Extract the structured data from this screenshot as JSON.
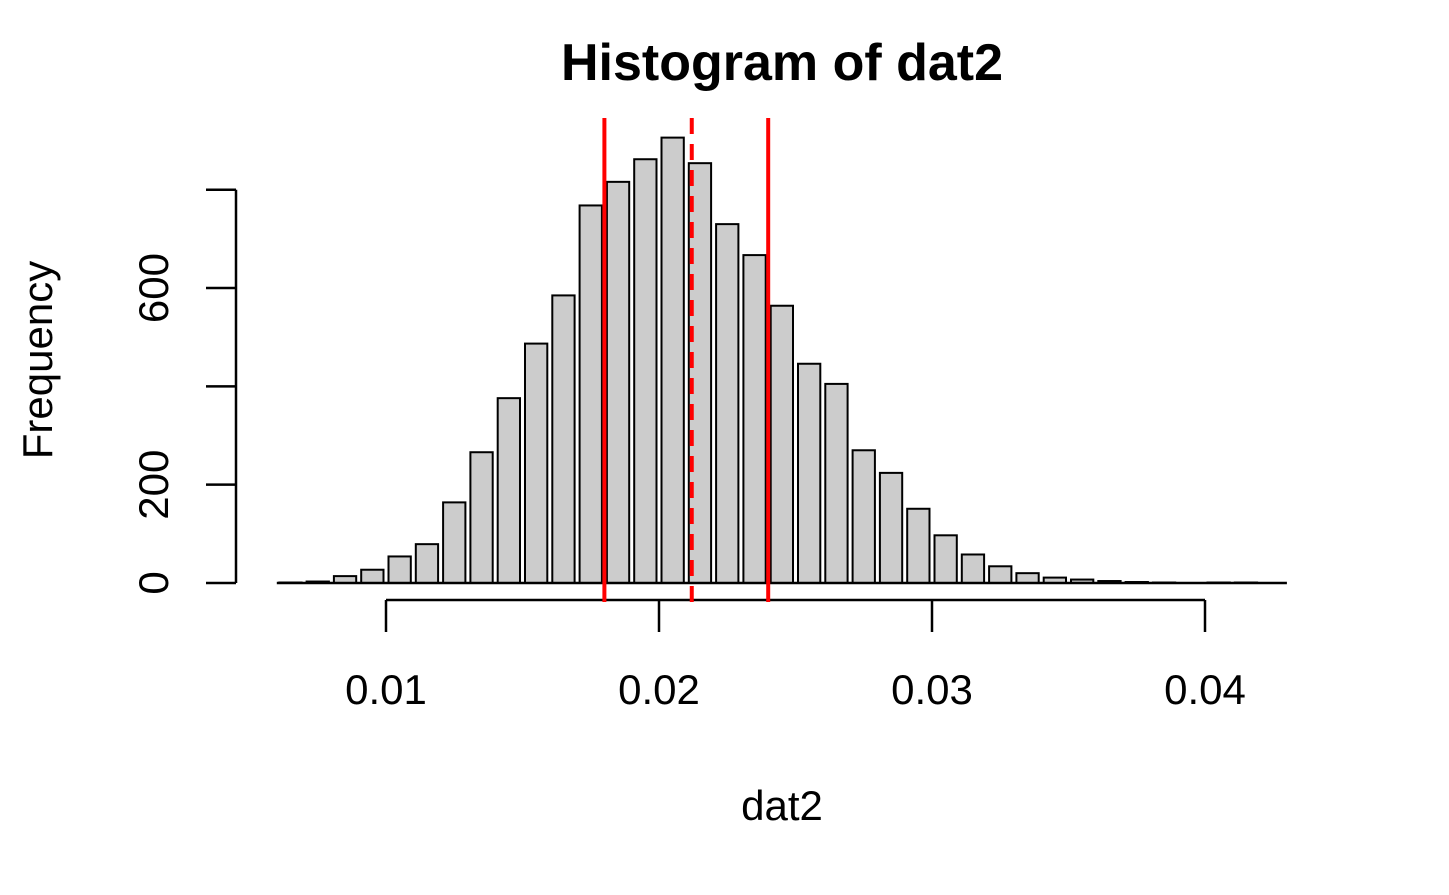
{
  "chart_data": {
    "type": "bar",
    "title": "Histogram of dat2",
    "xlabel": "dat2",
    "ylabel": "Frequency",
    "xlim": [
      0.006,
      0.043
    ],
    "ylim": [
      0,
      900
    ],
    "x_ticks": [
      0.01,
      0.02,
      0.03,
      0.04
    ],
    "x_tick_labels": [
      "0.01",
      "0.02",
      "0.03",
      "0.04"
    ],
    "y_ticks": [
      0,
      200,
      400,
      600,
      800
    ],
    "y_tick_labels": [
      "0",
      "200",
      "",
      "600",
      ""
    ],
    "grid": false,
    "bar_fill": "#cccccc",
    "bin_width": 0.001,
    "bins": [
      {
        "x0": 0.006,
        "x1": 0.007,
        "count": 1
      },
      {
        "x0": 0.007,
        "x1": 0.008,
        "count": 3
      },
      {
        "x0": 0.008,
        "x1": 0.009,
        "count": 14
      },
      {
        "x0": 0.009,
        "x1": 0.01,
        "count": 27
      },
      {
        "x0": 0.01,
        "x1": 0.011,
        "count": 54
      },
      {
        "x0": 0.011,
        "x1": 0.012,
        "count": 79
      },
      {
        "x0": 0.012,
        "x1": 0.013,
        "count": 164
      },
      {
        "x0": 0.013,
        "x1": 0.014,
        "count": 266
      },
      {
        "x0": 0.014,
        "x1": 0.015,
        "count": 376
      },
      {
        "x0": 0.015,
        "x1": 0.016,
        "count": 487
      },
      {
        "x0": 0.016,
        "x1": 0.017,
        "count": 585
      },
      {
        "x0": 0.017,
        "x1": 0.018,
        "count": 768
      },
      {
        "x0": 0.018,
        "x1": 0.019,
        "count": 816
      },
      {
        "x0": 0.019,
        "x1": 0.02,
        "count": 862
      },
      {
        "x0": 0.02,
        "x1": 0.021,
        "count": 906
      },
      {
        "x0": 0.021,
        "x1": 0.022,
        "count": 854
      },
      {
        "x0": 0.022,
        "x1": 0.023,
        "count": 730
      },
      {
        "x0": 0.023,
        "x1": 0.024,
        "count": 667
      },
      {
        "x0": 0.024,
        "x1": 0.025,
        "count": 564
      },
      {
        "x0": 0.025,
        "x1": 0.026,
        "count": 446
      },
      {
        "x0": 0.026,
        "x1": 0.027,
        "count": 405
      },
      {
        "x0": 0.027,
        "x1": 0.028,
        "count": 270
      },
      {
        "x0": 0.028,
        "x1": 0.029,
        "count": 224
      },
      {
        "x0": 0.029,
        "x1": 0.03,
        "count": 151
      },
      {
        "x0": 0.03,
        "x1": 0.031,
        "count": 97
      },
      {
        "x0": 0.031,
        "x1": 0.032,
        "count": 58
      },
      {
        "x0": 0.032,
        "x1": 0.033,
        "count": 34
      },
      {
        "x0": 0.033,
        "x1": 0.034,
        "count": 20
      },
      {
        "x0": 0.034,
        "x1": 0.035,
        "count": 11
      },
      {
        "x0": 0.035,
        "x1": 0.036,
        "count": 7
      },
      {
        "x0": 0.036,
        "x1": 0.037,
        "count": 4
      },
      {
        "x0": 0.037,
        "x1": 0.038,
        "count": 2
      },
      {
        "x0": 0.038,
        "x1": 0.039,
        "count": 1
      },
      {
        "x0": 0.039,
        "x1": 0.04,
        "count": 0
      },
      {
        "x0": 0.04,
        "x1": 0.041,
        "count": 1
      },
      {
        "x0": 0.041,
        "x1": 0.042,
        "count": 1
      },
      {
        "x0": 0.042,
        "x1": 0.043,
        "count": 0
      }
    ],
    "reference_lines": [
      {
        "x": 0.018,
        "style": "solid",
        "color": "#ff0000"
      },
      {
        "x": 0.0212,
        "style": "dashed",
        "color": "#ff0000"
      },
      {
        "x": 0.024,
        "style": "solid",
        "color": "#ff0000"
      }
    ]
  }
}
